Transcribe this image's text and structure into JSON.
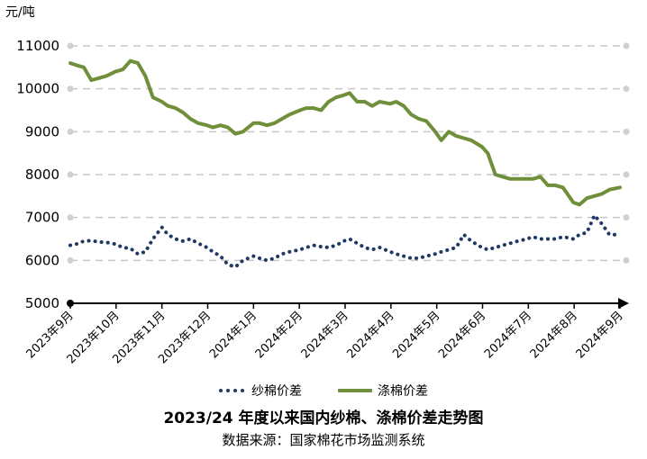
{
  "chart_data": {
    "type": "line",
    "title": "2023/24 年度以来国内纱棉、涤棉价差走势图",
    "source": "数据来源：国家棉花市场监测系统",
    "ylabel": "元/吨",
    "xlabel": "",
    "ylim": [
      5000,
      11000
    ],
    "yticks": [
      "11000",
      "10000",
      "9000",
      "8000",
      "7000",
      "6000",
      "5000"
    ],
    "xlim": [
      "2023-09-01",
      "2024-09-01"
    ],
    "categories": [
      "2023年9月",
      "2023年10月",
      "2023年11月",
      "2023年12月",
      "2024年1月",
      "2024年2月",
      "2024年3月",
      "2024年4月",
      "2024年5月",
      "2024年6月",
      "2024年7月",
      "2024年8月",
      "2024年9月"
    ],
    "grid": true,
    "legend_position": "bottom",
    "series": [
      {
        "name": "纱棉价差",
        "color": "#1f3864",
        "style": "dotted",
        "x": [
          "2023-09-01",
          "2023-09-05",
          "2023-09-10",
          "2023-09-15",
          "2023-09-20",
          "2023-09-25",
          "2023-10-01",
          "2023-10-06",
          "2023-10-11",
          "2023-10-16",
          "2023-10-21",
          "2023-10-26",
          "2023-11-01",
          "2023-11-05",
          "2023-11-10",
          "2023-11-15",
          "2023-11-20",
          "2023-11-25",
          "2023-12-01",
          "2023-12-05",
          "2023-12-10",
          "2023-12-15",
          "2023-12-20",
          "2023-12-25",
          "2024-01-01",
          "2024-01-05",
          "2024-01-10",
          "2024-01-15",
          "2024-01-20",
          "2024-01-25",
          "2024-02-01",
          "2024-02-05",
          "2024-02-10",
          "2024-02-15",
          "2024-02-20",
          "2024-02-25",
          "2024-03-01",
          "2024-03-05",
          "2024-03-10",
          "2024-03-15",
          "2024-03-20",
          "2024-03-25",
          "2024-04-01",
          "2024-04-05",
          "2024-04-10",
          "2024-04-15",
          "2024-04-20",
          "2024-04-25",
          "2024-05-01",
          "2024-05-05",
          "2024-05-10",
          "2024-05-15",
          "2024-05-20",
          "2024-05-25",
          "2024-06-01",
          "2024-06-05",
          "2024-06-10",
          "2024-06-15",
          "2024-06-20",
          "2024-06-25",
          "2024-07-01",
          "2024-07-05",
          "2024-07-10",
          "2024-07-15",
          "2024-07-20",
          "2024-07-25",
          "2024-08-01",
          "2024-08-05",
          "2024-08-10",
          "2024-08-15",
          "2024-08-20",
          "2024-08-25",
          "2024-09-01"
        ],
        "values": [
          6350,
          6380,
          6450,
          6460,
          6430,
          6420,
          6380,
          6300,
          6280,
          6150,
          6200,
          6500,
          6770,
          6600,
          6500,
          6450,
          6500,
          6400,
          6300,
          6200,
          6100,
          5900,
          5850,
          6000,
          6100,
          6050,
          6000,
          6050,
          6150,
          6200,
          6250,
          6300,
          6350,
          6320,
          6300,
          6350,
          6450,
          6500,
          6400,
          6300,
          6250,
          6300,
          6200,
          6150,
          6100,
          6050,
          6050,
          6100,
          6150,
          6200,
          6250,
          6300,
          6600,
          6450,
          6300,
          6250,
          6300,
          6350,
          6400,
          6450,
          6500,
          6550,
          6500,
          6500,
          6500,
          6550,
          6500,
          6600,
          6650,
          7050,
          6850,
          6600,
          6600
        ]
      },
      {
        "name": "涤棉价差",
        "color": "#6f8f3a",
        "style": "solid",
        "x": [
          "2023-09-01",
          "2023-09-05",
          "2023-09-10",
          "2023-09-15",
          "2023-09-20",
          "2023-09-25",
          "2023-10-01",
          "2023-10-06",
          "2023-10-11",
          "2023-10-16",
          "2023-10-21",
          "2023-10-26",
          "2023-11-01",
          "2023-11-05",
          "2023-11-10",
          "2023-11-15",
          "2023-11-20",
          "2023-11-25",
          "2023-12-01",
          "2023-12-05",
          "2023-12-10",
          "2023-12-15",
          "2023-12-20",
          "2023-12-25",
          "2024-01-01",
          "2024-01-05",
          "2024-01-10",
          "2024-01-15",
          "2024-01-20",
          "2024-01-25",
          "2024-02-01",
          "2024-02-05",
          "2024-02-10",
          "2024-02-15",
          "2024-02-20",
          "2024-02-25",
          "2024-03-01",
          "2024-03-05",
          "2024-03-10",
          "2024-03-15",
          "2024-03-20",
          "2024-03-25",
          "2024-04-01",
          "2024-04-05",
          "2024-04-10",
          "2024-04-15",
          "2024-04-20",
          "2024-04-25",
          "2024-05-01",
          "2024-05-05",
          "2024-05-10",
          "2024-05-15",
          "2024-05-20",
          "2024-05-25",
          "2024-06-01",
          "2024-06-05",
          "2024-06-10",
          "2024-06-15",
          "2024-06-20",
          "2024-06-25",
          "2024-07-01",
          "2024-07-05",
          "2024-07-10",
          "2024-07-15",
          "2024-07-20",
          "2024-07-25",
          "2024-08-01",
          "2024-08-05",
          "2024-08-10",
          "2024-08-15",
          "2024-08-20",
          "2024-08-25",
          "2024-09-01"
        ],
        "values": [
          10600,
          10550,
          10500,
          10200,
          10250,
          10300,
          10400,
          10450,
          10650,
          10600,
          10300,
          9800,
          9700,
          9600,
          9550,
          9450,
          9300,
          9200,
          9150,
          9100,
          9150,
          9100,
          8950,
          9000,
          9200,
          9200,
          9150,
          9200,
          9300,
          9400,
          9500,
          9550,
          9550,
          9500,
          9700,
          9800,
          9850,
          9900,
          9700,
          9700,
          9600,
          9700,
          9650,
          9700,
          9600,
          9400,
          9300,
          9250,
          9000,
          8800,
          9000,
          8900,
          8850,
          8800,
          8650,
          8500,
          8000,
          7950,
          7900,
          7900,
          7900,
          7900,
          7950,
          7750,
          7750,
          7700,
          7350,
          7300,
          7450,
          7500,
          7550,
          7650,
          7700
        ]
      }
    ]
  }
}
